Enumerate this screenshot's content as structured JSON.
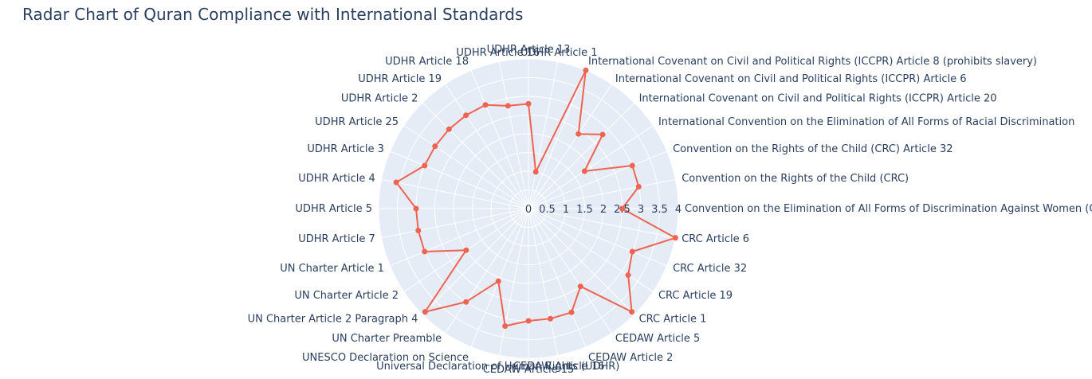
{
  "chart_data": {
    "type": "radar",
    "title": "Radar Chart of Quran Compliance with International Standards",
    "radial_range": [
      0,
      4
    ],
    "radial_ticks": [
      "0",
      "0.5",
      "1",
      "1.5",
      "2",
      "2.5",
      "3",
      "3.5",
      "4"
    ],
    "grid": true,
    "colors": {
      "line": "#ef6351",
      "polar_bg": "#e5ecf6",
      "grid": "#ffffff",
      "text": "#2a3f5f"
    },
    "categories": [
      "Convention on the Elimination of All Forms of Discrimination Against Women (CEDAW)",
      "Convention on the Rights of the Child (CRC)",
      "Convention on the Rights of the Child (CRC) Article 32",
      "International Convention on the Elimination of All Forms of Racial Discrimination",
      "International Covenant on Civil and Political Rights (ICCPR) Article 20",
      "International Covenant on Civil and Political Rights (ICCPR) Article 6",
      "International Covenant on Civil and Political Rights (ICCPR) Article 8 (prohibits slavery)",
      "UDHR Article 1",
      "UDHR Article 13",
      "UDHR Article 16",
      "UDHR Article 18",
      "UDHR Article 19",
      "UDHR Article 2",
      "UDHR Article 25",
      "UDHR Article 3",
      "UDHR Article 4",
      "UDHR Article 5",
      "UDHR Article 7",
      "UN Charter Article 1",
      "UN Charter Article 2",
      "UN Charter Article 2 Paragraph 4",
      "UN Charter Preamble",
      "UNESCO Declaration on Science",
      "Universal Declaration of Human Rights (UDHR)",
      "CEDAW Article 15",
      "CEDAW Article 16",
      "CEDAW Article 2",
      "CEDAW Article 5",
      "CRC Article 1",
      "CRC Article 19",
      "CRC Article 32",
      "CRC Article 6"
    ],
    "values": [
      2.5,
      3,
      3,
      1.8,
      2.8,
      2.4,
      4,
      1,
      2.8,
      2.8,
      3,
      3,
      3,
      3,
      3,
      3.6,
      3,
      3,
      3,
      2,
      3.9,
      3,
      2.1,
      3.2,
      3,
      3,
      3,
      2.5,
      3.9,
      3.2,
      3,
      4
    ]
  }
}
